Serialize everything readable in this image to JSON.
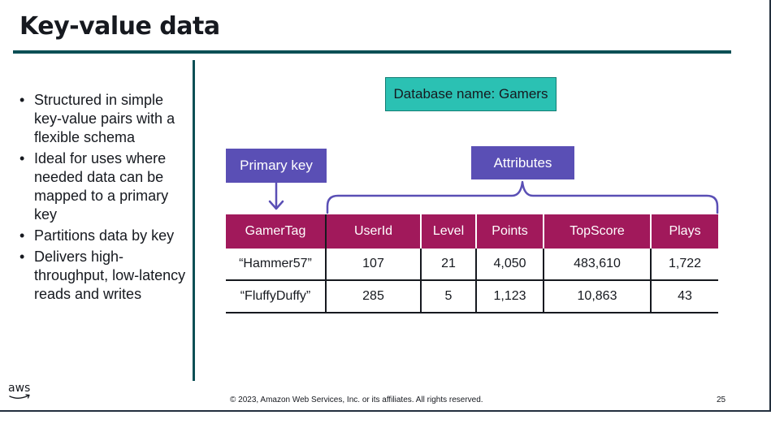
{
  "slide": {
    "title": "Key-value data",
    "bullets": [
      "Structured in simple key-value pairs with a flexible schema",
      "Ideal for uses where needed data can be mapped to a primary key",
      "Partitions data by key",
      "Delivers high-throughput, low-latency reads and writes"
    ],
    "database_label": "Database name: Gamers",
    "primary_key_label": "Primary key",
    "attributes_label": "Attributes",
    "table": {
      "headers": [
        "GamerTag",
        "UserId",
        "Level",
        "Points",
        "TopScore",
        "Plays"
      ],
      "rows": [
        [
          "“Hammer57”",
          "107",
          "21",
          "4,050",
          "483,610",
          "1,722"
        ],
        [
          "“FluffyDuffy”",
          "285",
          "5",
          "1,123",
          "10,863",
          "43"
        ]
      ]
    },
    "logo_text": "aws",
    "footer": "© 2023, Amazon Web Services, Inc. or its affiliates. All rights reserved.",
    "page_number": "25"
  },
  "colors": {
    "title_rule": "#0b4f55",
    "db_box": "#2bc1b3",
    "label_box": "#5a4fb5",
    "table_header": "#a1195b"
  }
}
